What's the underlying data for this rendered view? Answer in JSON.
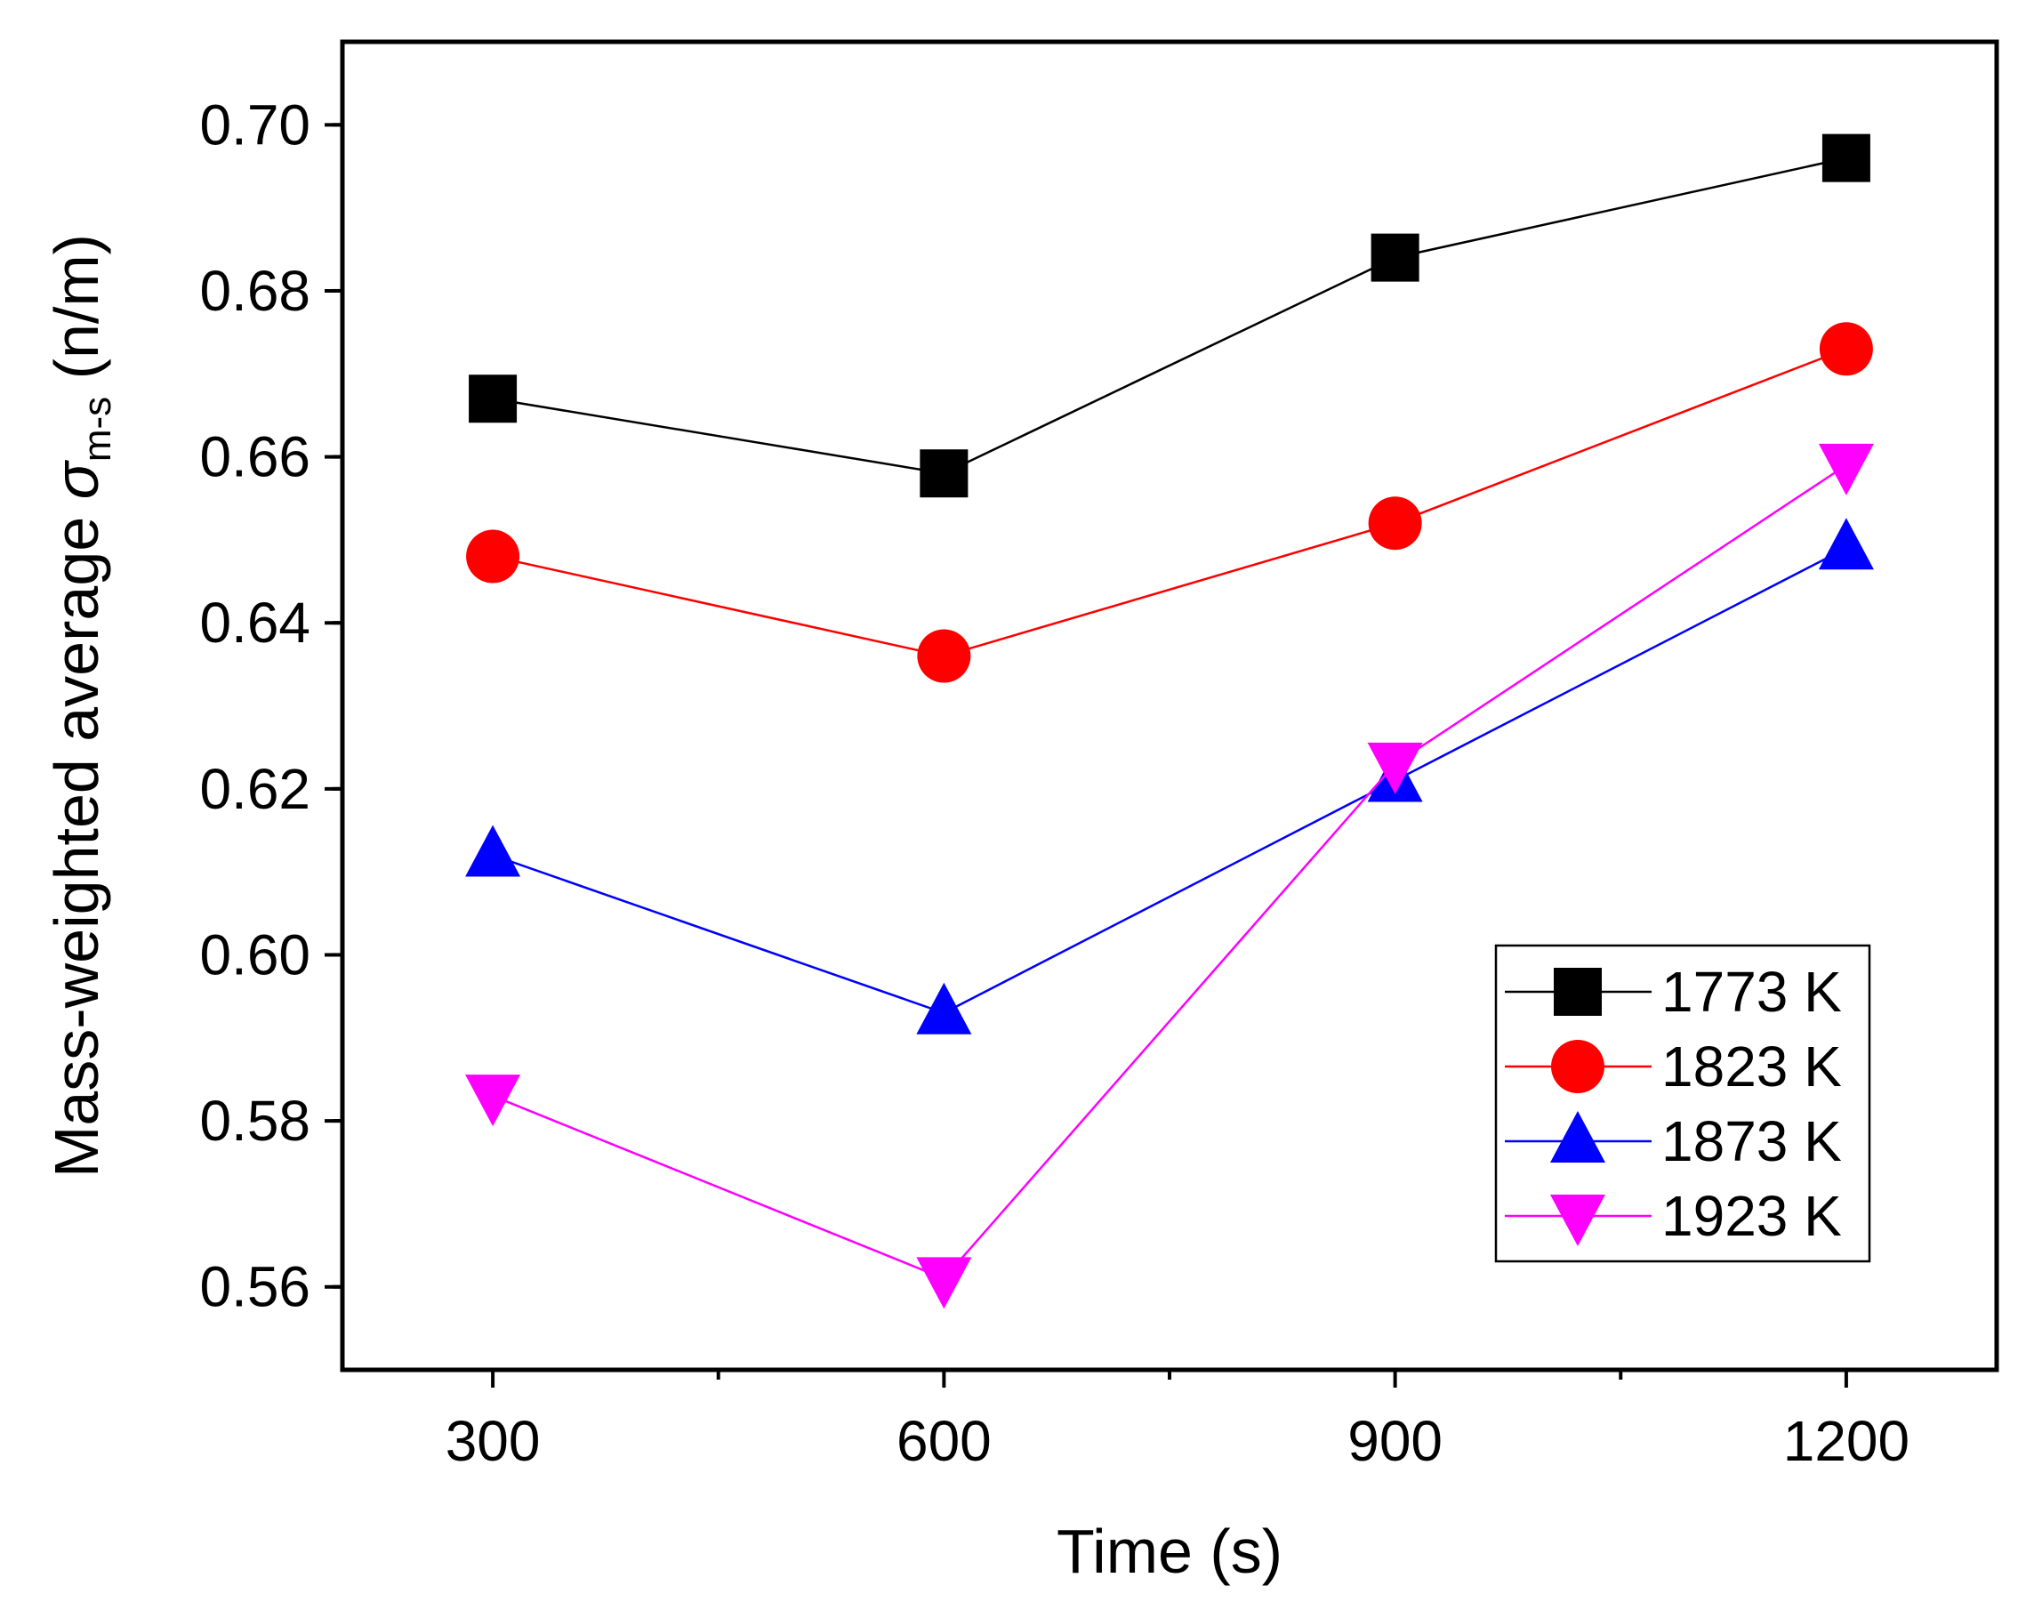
{
  "chart_data": {
    "type": "line",
    "title": "",
    "xlabel": "Time (s)",
    "ylabel": {
      "prefix": "Mass-weighted average ",
      "symbol": "σ",
      "subscript": "m-s",
      "suffix": " (n/m)"
    },
    "x": [
      300,
      600,
      900,
      1200
    ],
    "xlim": [
      200,
      1300
    ],
    "ylim": [
      0.55,
      0.71
    ],
    "xticks": [
      300,
      600,
      900,
      1200
    ],
    "xtick_labels": [
      "300",
      "600",
      "900",
      "1200"
    ],
    "yticks": [
      0.56,
      0.58,
      0.6,
      0.62,
      0.64,
      0.66,
      0.68,
      0.7
    ],
    "ytick_labels": [
      "0.56",
      "0.58",
      "0.60",
      "0.62",
      "0.64",
      "0.66",
      "0.68",
      "0.70"
    ],
    "legend_position": "bottom-right",
    "grid": false,
    "series": [
      {
        "name": "1773 K",
        "values": [
          0.667,
          0.658,
          0.684,
          0.696
        ],
        "color": "#000000",
        "marker": "square"
      },
      {
        "name": "1823 K",
        "values": [
          0.648,
          0.636,
          0.652,
          0.673
        ],
        "color": "#ff0000",
        "marker": "circle"
      },
      {
        "name": "1873 K",
        "values": [
          0.612,
          0.593,
          0.621,
          0.649
        ],
        "color": "#0000ff",
        "marker": "triangle-up"
      },
      {
        "name": "1923 K",
        "values": [
          0.583,
          0.561,
          0.623,
          0.659
        ],
        "color": "#ff00ff",
        "marker": "triangle-down"
      }
    ]
  }
}
